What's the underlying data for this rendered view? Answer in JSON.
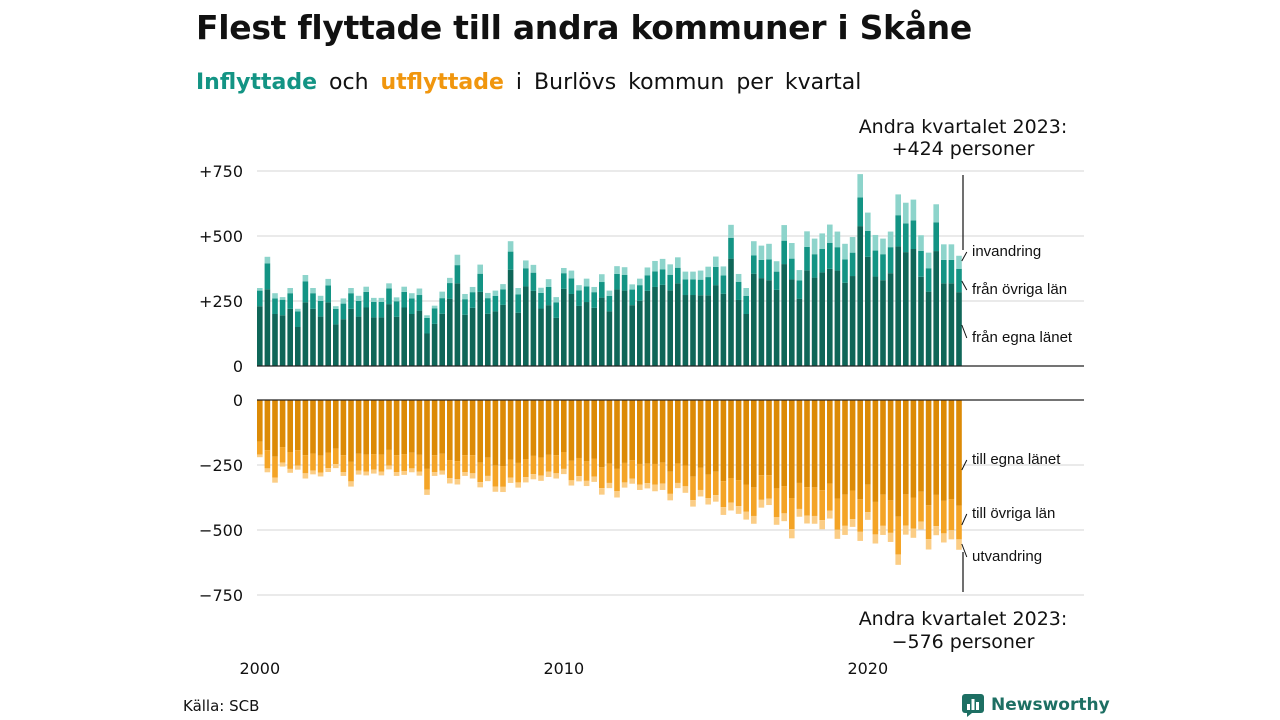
{
  "header": {
    "title": "Flest flyttade till andra kommuner i Skåne",
    "subtitle_in": "Inflyttade",
    "subtitle_och": "och",
    "subtitle_out": "utflyttade",
    "subtitle_rest": "i Burlövs kommun per kvartal"
  },
  "annotations": {
    "top_line1": "Andra kvartalet 2023:",
    "top_line2": "+424 personer",
    "bottom_line1": "Andra kvartalet 2023:",
    "bottom_line2": "−576 personer"
  },
  "footer": {
    "source": "Källa: SCB",
    "brand": "Newsworthy"
  },
  "colors": {
    "in_own_county": "#0f6658",
    "in_other_counties": "#139484",
    "in_immigration": "#8dd4cb",
    "out_own_county": "#dc8a06",
    "out_other_counties": "#f4a426",
    "out_emigration": "#fbcd85",
    "subtitle_in": "#139484",
    "subtitle_out": "#f0960e"
  },
  "chart_data": {
    "type": "bar",
    "stacked": true,
    "x_unit": "quarter",
    "x_start": "2000 Q1",
    "x_end": "2023 Q2",
    "x_ticks": [
      "2000",
      "2010",
      "2020"
    ],
    "y_ticks_in": [
      "+750",
      "+500",
      "+250",
      "0"
    ],
    "y_ticks_out": [
      "0",
      "−250",
      "−500",
      "−750"
    ],
    "ylim_in": [
      0,
      750
    ],
    "ylim_out": [
      -750,
      0
    ],
    "grid": true,
    "segment_labels_in": [
      "invandring",
      "från övriga län",
      "från egna länet"
    ],
    "segment_labels_out": [
      "till egna länet",
      "till övriga län",
      "utvandring"
    ],
    "inflow_totals": [
      300,
      420,
      280,
      265,
      300,
      220,
      350,
      300,
      270,
      335,
      230,
      260,
      300,
      270,
      305,
      262,
      262,
      318,
      264,
      305,
      280,
      298,
      195,
      232,
      286,
      339,
      428,
      277,
      304,
      390,
      281,
      290,
      315,
      480,
      300,
      406,
      389,
      301,
      334,
      265,
      377,
      367,
      311,
      336,
      304,
      353,
      290,
      384,
      380,
      314,
      336,
      379,
      404,
      412,
      391,
      418,
      363,
      363,
      367,
      382,
      421,
      383,
      543,
      354,
      300,
      480,
      463,
      470,
      403,
      542,
      473,
      369,
      518,
      490,
      510,
      544,
      517,
      470,
      496,
      738,
      590,
      504,
      490,
      517,
      660,
      628,
      640,
      503,
      436,
      622,
      468,
      468,
      424
    ],
    "inflow_other_counties": [
      60,
      100,
      60,
      60,
      60,
      60,
      80,
      60,
      60,
      65,
      60,
      60,
      60,
      60,
      60,
      60,
      60,
      60,
      60,
      60,
      60,
      60,
      60,
      60,
      60,
      60,
      70,
      60,
      60,
      70,
      60,
      60,
      60,
      70,
      70,
      70,
      70,
      60,
      70,
      60,
      60,
      60,
      60,
      60,
      60,
      60,
      60,
      60,
      60,
      60,
      60,
      60,
      60,
      60,
      60,
      60,
      60,
      60,
      60,
      70,
      70,
      70,
      80,
      70,
      70,
      70,
      70,
      80,
      70,
      90,
      80,
      70,
      90,
      90,
      90,
      100,
      90,
      90,
      90,
      110,
      100,
      100,
      100,
      100,
      120,
      110,
      110,
      100,
      90,
      110,
      90,
      90,
      90
    ],
    "inflow_immigration": [
      10,
      25,
      20,
      10,
      20,
      10,
      25,
      20,
      20,
      25,
      10,
      20,
      20,
      20,
      20,
      15,
      15,
      20,
      15,
      20,
      20,
      25,
      10,
      10,
      25,
      20,
      40,
      20,
      20,
      35,
      20,
      20,
      20,
      40,
      25,
      30,
      30,
      20,
      30,
      20,
      20,
      30,
      20,
      30,
      20,
      30,
      20,
      30,
      30,
      20,
      25,
      30,
      40,
      40,
      40,
      40,
      30,
      30,
      35,
      40,
      40,
      35,
      50,
      30,
      30,
      55,
      55,
      60,
      40,
      60,
      60,
      40,
      60,
      60,
      60,
      70,
      60,
      60,
      60,
      90,
      70,
      60,
      60,
      60,
      80,
      80,
      80,
      60,
      60,
      70,
      60,
      60,
      50
    ],
    "outflow_totals": [
      -220,
      -278,
      -318,
      -256,
      -280,
      -268,
      -302,
      -286,
      -294,
      -277,
      -262,
      -292,
      -333,
      -287,
      -290,
      -283,
      -290,
      -267,
      -292,
      -288,
      -278,
      -291,
      -365,
      -292,
      -287,
      -321,
      -325,
      -292,
      -302,
      -336,
      -312,
      -353,
      -354,
      -319,
      -337,
      -317,
      -305,
      -311,
      -296,
      -302,
      -285,
      -329,
      -313,
      -331,
      -315,
      -364,
      -339,
      -375,
      -337,
      -322,
      -346,
      -340,
      -351,
      -346,
      -386,
      -339,
      -357,
      -410,
      -371,
      -402,
      -391,
      -442,
      -425,
      -438,
      -460,
      -476,
      -414,
      -404,
      -480,
      -466,
      -532,
      -449,
      -475,
      -476,
      -497,
      -456,
      -534,
      -519,
      -488,
      -542,
      -461,
      -552,
      -519,
      -546,
      -634,
      -518,
      -530,
      -498,
      -575,
      -520,
      -548,
      -536,
      -576
    ],
    "outflow_other_counties": [
      -50,
      -70,
      -80,
      -60,
      -65,
      -60,
      -70,
      -65,
      -65,
      -60,
      -60,
      -65,
      -75,
      -65,
      -65,
      -60,
      -65,
      -60,
      -65,
      -65,
      -60,
      -65,
      -80,
      -65,
      -65,
      -70,
      -70,
      -65,
      -70,
      -75,
      -70,
      -80,
      -80,
      -70,
      -75,
      -70,
      -70,
      -70,
      -65,
      -70,
      -65,
      -75,
      -70,
      -75,
      -70,
      -80,
      -75,
      -85,
      -75,
      -70,
      -80,
      -75,
      -80,
      -80,
      -85,
      -75,
      -80,
      -90,
      -85,
      -90,
      -90,
      -100,
      -95,
      -100,
      -105,
      -110,
      -95,
      -90,
      -110,
      -105,
      -120,
      -100,
      -110,
      -110,
      -115,
      -105,
      -120,
      -120,
      -110,
      -125,
      -105,
      -125,
      -120,
      -125,
      -145,
      -120,
      -120,
      -115,
      -130,
      -120,
      -125,
      -120,
      -130
    ],
    "outflow_emigration": [
      -10,
      -15,
      -20,
      -15,
      -15,
      -15,
      -20,
      -15,
      -15,
      -15,
      -15,
      -15,
      -20,
      -15,
      -15,
      -15,
      -15,
      -15,
      -15,
      -15,
      -15,
      -15,
      -20,
      -15,
      -15,
      -20,
      -20,
      -15,
      -20,
      -20,
      -20,
      -20,
      -20,
      -20,
      -20,
      -20,
      -20,
      -20,
      -20,
      -20,
      -20,
      -20,
      -20,
      -20,
      -20,
      -25,
      -20,
      -25,
      -20,
      -20,
      -20,
      -20,
      -25,
      -25,
      -25,
      -20,
      -25,
      -25,
      -25,
      -25,
      -25,
      -30,
      -30,
      -30,
      -30,
      -30,
      -30,
      -25,
      -30,
      -30,
      -35,
      -30,
      -30,
      -30,
      -35,
      -30,
      -35,
      -35,
      -30,
      -35,
      -30,
      -35,
      -35,
      -35,
      -40,
      -35,
      -35,
      -30,
      -40,
      -35,
      -35,
      -35,
      -40
    ]
  }
}
